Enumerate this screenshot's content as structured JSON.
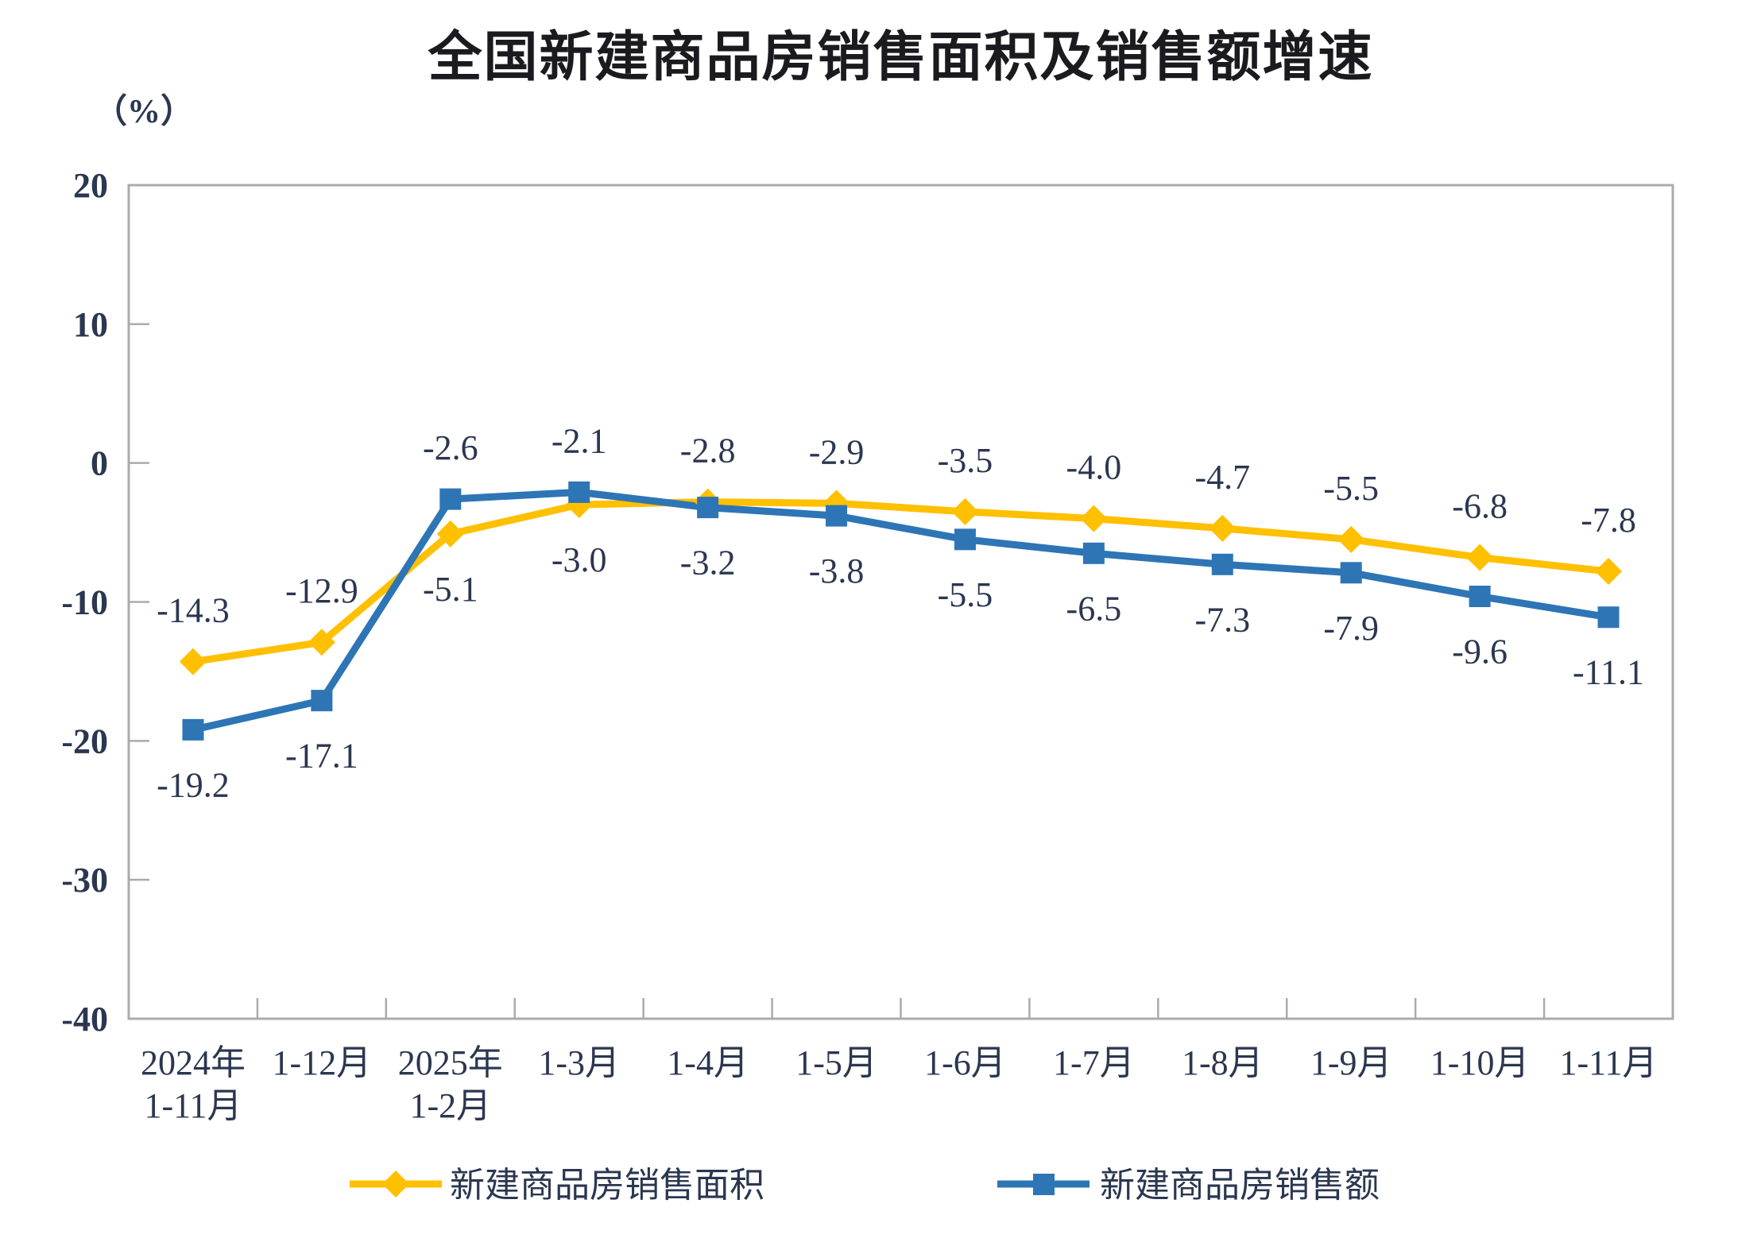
{
  "title": "全国新建商品房销售面积及销售额增速",
  "y_axis": {
    "unit_label": "（%）",
    "tick_labels": [
      "20",
      "10",
      "0",
      "-10",
      "-20",
      "-30",
      "-40"
    ]
  },
  "chart_data": {
    "type": "line",
    "title": "全国新建商品房销售面积及销售额增速",
    "unit": "（%）",
    "categories": [
      "2024年\n1-11月",
      "1-12月",
      "2025年\n1-2月",
      "1-3月",
      "1-4月",
      "1-5月",
      "1-6月",
      "1-7月",
      "1-8月",
      "1-9月",
      "1-10月",
      "1-11月"
    ],
    "series": [
      {
        "name": "新建商品房销售面积",
        "marker": "diamond",
        "color": "#FFC000",
        "values": [
          -14.3,
          -12.9,
          -5.1,
          -3.0,
          -2.8,
          -2.9,
          -3.5,
          -4.0,
          -4.7,
          -5.5,
          -6.8,
          -7.8
        ]
      },
      {
        "name": "新建商品房销售额",
        "marker": "square",
        "color": "#2E75B6",
        "values": [
          -19.2,
          -17.1,
          -2.6,
          -2.1,
          -3.2,
          -3.8,
          -5.5,
          -6.5,
          -7.3,
          -7.9,
          -9.6,
          -11.1
        ]
      }
    ],
    "ylim": [
      -40,
      20
    ],
    "yticks": [
      20,
      10,
      0,
      -10,
      -20,
      -30,
      -40
    ],
    "grid": false,
    "legend_position": "bottom",
    "axis_color": "#ABABAB",
    "text_color": "#2b3750",
    "data_labels": true
  }
}
